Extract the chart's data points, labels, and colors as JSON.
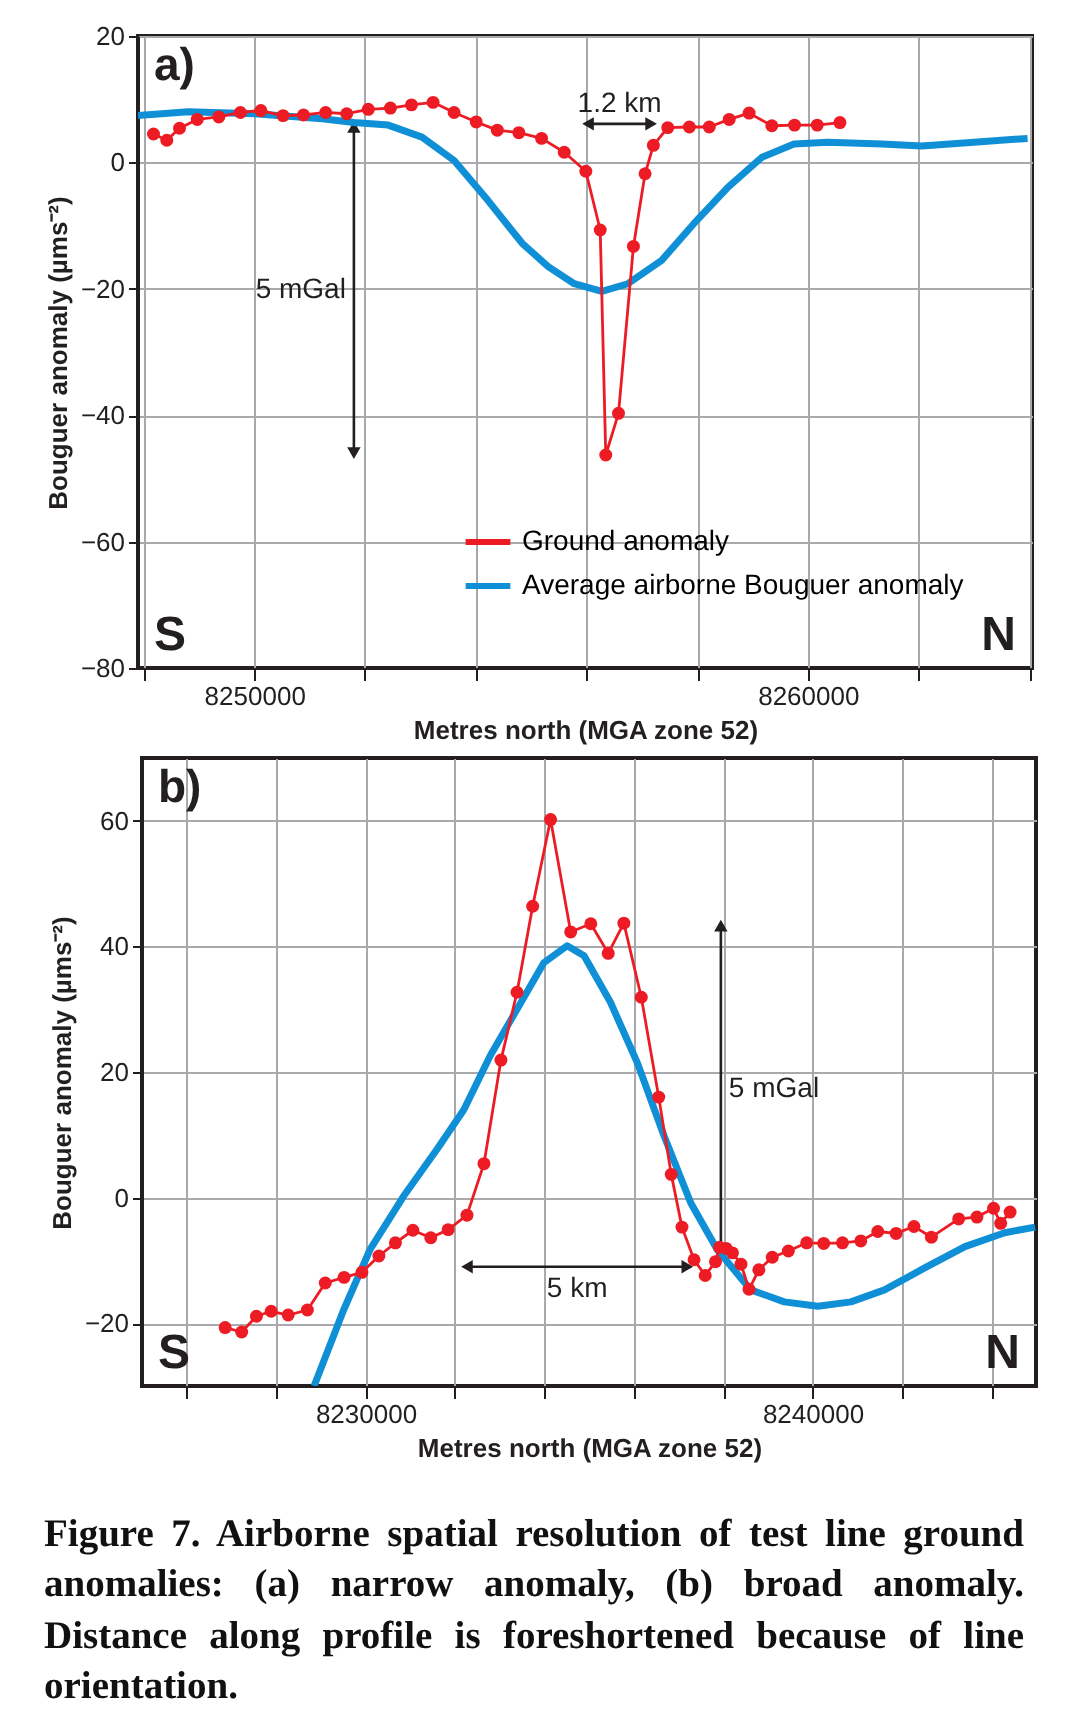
{
  "chart_data": [
    {
      "type": "line",
      "title": "a)",
      "xlabel": "Metres north (MGA zone 52)",
      "ylabel": "Bouguer anomaly (µms⁻²)",
      "xlim": [
        8247900,
        8264050
      ],
      "xticks": [
        {
          "value": 8248000,
          "label": null
        },
        8250000,
        {
          "value": 8252000,
          "label": null
        },
        {
          "value": 8254000,
          "label": null
        },
        {
          "value": 8256000,
          "label": null
        },
        {
          "value": 8258000,
          "label": null
        },
        8260000,
        {
          "value": 8262000,
          "label": null
        },
        {
          "value": 8264000,
          "label": null
        }
      ],
      "ylim": [
        -80,
        20
      ],
      "yticks": [
        -80,
        -60,
        -40,
        -20,
        0,
        20
      ],
      "grid": true,
      "legend": "bottom right",
      "series": [
        {
          "name": "Ground anomaly",
          "color": "#ed1c24",
          "marker": "circle",
          "x": [
            8248180,
            8248420,
            8248650,
            8248970,
            8249360,
            8249750,
            8250120,
            8250520,
            8250890,
            8251290,
            8251670,
            8252060,
            8252460,
            8252840,
            8253230,
            8253610,
            8254010,
            8254390,
            8254780,
            8255190,
            8255600,
            8255990,
            8256250,
            8256350,
            8256580,
            8256850,
            8257060,
            8257210,
            8257470,
            8257860,
            8258220,
            8258580,
            8258940,
            8259350,
            8259760,
            8260170,
            8260580
          ],
          "values": [
            4.5,
            3.5,
            5.4,
            6.8,
            7.2,
            7.9,
            8.2,
            7.4,
            7.5,
            7.9,
            7.7,
            8.4,
            8.6,
            9.1,
            9.5,
            7.9,
            6.4,
            5.1,
            4.7,
            3.8,
            1.6,
            -1.4,
            -10.7,
            -46.3,
            -39.7,
            -13.3,
            -1.8,
            2.7,
            5.5,
            5.6,
            5.6,
            6.8,
            7.8,
            5.8,
            5.9,
            5.9,
            6.3
          ]
        },
        {
          "name": "Average airborne Bouguer anomaly",
          "color": "#0f8fd6",
          "x": [
            8247900,
            8248810,
            8250000,
            8251230,
            8251800,
            8252420,
            8253030,
            8253610,
            8254220,
            8254840,
            8255310,
            8255780,
            8256280,
            8256750,
            8257360,
            8257940,
            8258560,
            8259170,
            8259750,
            8260360,
            8261340,
            8262060,
            8263000,
            8263970
          ],
          "values": [
            7.4,
            8.0,
            7.7,
            6.9,
            6.3,
            5.9,
            4.0,
            0.3,
            -6.0,
            -12.8,
            -16.5,
            -19.2,
            -20.4,
            -19.2,
            -15.5,
            -9.7,
            -3.9,
            0.8,
            2.9,
            3.2,
            2.9,
            2.6,
            3.2,
            3.8
          ]
        },
        {
          "name": "5 mGal",
          "color": "#231f20",
          "marker": "triangle",
          "x": [
            8251800,
            8251800
          ],
          "values": [
            5.6,
            -46
          ]
        },
        {
          "name": "1.2 km",
          "color": "#231f20",
          "marker": "triangle",
          "x": [
            8256030,
            8257170
          ],
          "values": [
            6.1,
            6.1
          ]
        }
      ],
      "annotations": [
        "S",
        "N"
      ]
    },
    {
      "type": "line",
      "title": "b)",
      "xlabel": "Metres north (MGA zone 52)",
      "ylabel": "Bouguer anomaly (µms⁻²)",
      "xlim": [
        8225000,
        8245000
      ],
      "xticks": [
        {
          "value": 8226000,
          "label": null
        },
        {
          "value": 8228000,
          "label": null
        },
        8230000,
        {
          "value": 8232000,
          "label": null
        },
        {
          "value": 8234000,
          "label": null
        },
        {
          "value": 8236000,
          "label": null
        },
        {
          "value": 8238000,
          "label": null
        },
        8240000,
        {
          "value": 8242000,
          "label": null
        },
        {
          "value": 8244000,
          "label": null
        }
      ],
      "ylim": [
        -30,
        70
      ],
      "yticks": [
        -20,
        0,
        20,
        40,
        60
      ],
      "grid": true,
      "series": [
        {
          "color": "#ed1c24",
          "marker": "circle",
          "x": [
            8226860,
            8227230,
            8227560,
            8227890,
            8228270,
            8228700,
            8229100,
            8229520,
            8229920,
            8230300,
            8230670,
            8231060,
            8231460,
            8231850,
            8232270,
            8232650,
            8233030,
            8233390,
            8233740,
            8234140,
            8234590,
            8235040,
            8235430,
            8235780,
            8236170,
            8236560,
            8236840,
            8237080,
            8237350,
            8237600,
            8237830,
            8237920,
            8238070,
            8238210,
            8238400,
            8238580,
            8238800,
            8239100,
            8239460,
            8239870,
            8240250,
            8240670,
            8241080,
            8241460,
            8241870,
            8242270,
            8242660,
            8243270,
            8243680,
            8244050,
            8244210,
            8244420
          ],
          "values": [
            -20.7,
            -21.4,
            -18.9,
            -18.1,
            -18.7,
            -17.9,
            -13.6,
            -12.7,
            -11.9,
            -9.3,
            -7.2,
            -5.2,
            -6.4,
            -5.1,
            -2.8,
            5.4,
            21.9,
            32.7,
            46.4,
            60.2,
            42.3,
            43.6,
            38.9,
            43.7,
            31.9,
            16.0,
            3.7,
            -4.7,
            -9.9,
            -12.4,
            -10.2,
            -7.9,
            -8.1,
            -8.8,
            -10.6,
            -14.6,
            -11.5,
            -9.5,
            -8.5,
            -7.2,
            -7.3,
            -7.2,
            -6.9,
            -5.4,
            -5.7,
            -4.6,
            -6.3,
            -3.4,
            -3.1,
            -1.7,
            -4.1,
            -2.3
          ]
        },
        {
          "color": "#0f8fd6",
          "x": [
            8228850,
            8229510,
            8230100,
            8230850,
            8231600,
            8232200,
            8232790,
            8233390,
            8233990,
            8234510,
            8234890,
            8235480,
            8236080,
            8236680,
            8237280,
            8237870,
            8238620,
            8239370,
            8240120,
            8240860,
            8241610,
            8242510,
            8243410,
            8244300,
            8244980
          ],
          "values": [
            -30,
            -17.9,
            -8.3,
            0.2,
            7.7,
            14.0,
            22.6,
            30.0,
            37.4,
            40.1,
            38.5,
            31.1,
            21.5,
            9.8,
            -0.9,
            -8.3,
            -14.7,
            -16.6,
            -17.3,
            -16.6,
            -14.7,
            -11.2,
            -7.8,
            -5.6,
            -4.7
          ]
        },
        {
          "name": "5 mGal",
          "color": "#231f20",
          "marker": "triangle",
          "x": [
            8237950,
            8237950
          ],
          "values": [
            43.3,
            -8.8
          ]
        },
        {
          "name": "5 km",
          "color": "#231f20",
          "marker": "triangle",
          "x": [
            8232270,
            8237200
          ],
          "values": [
            -11.0,
            -11.0
          ]
        }
      ],
      "annotations": [
        "S",
        "N",
        "Figure 7. Airborne spatial resolution of test line ground anomalies: (a) narrow anomaly, (b) broad anomaly. Distance along profile is foreshortened because of line orientation."
      ]
    }
  ]
}
